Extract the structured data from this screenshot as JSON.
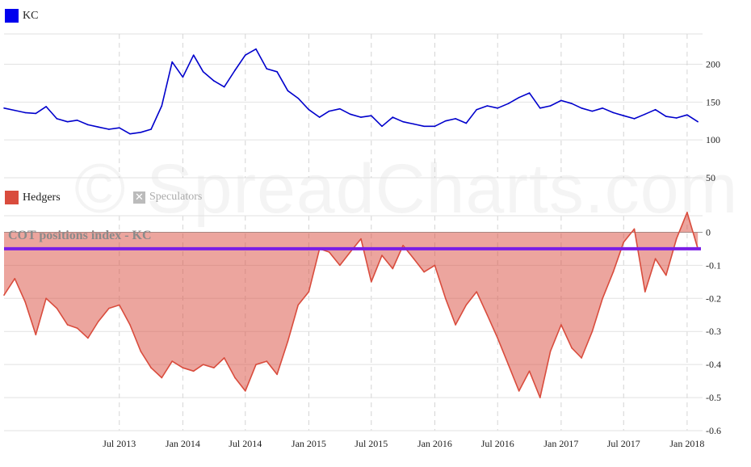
{
  "legend_top": {
    "label": "KC",
    "color": "#0000ee"
  },
  "legend_bottom": [
    {
      "label": "Hedgers",
      "color": "#d94c3d",
      "active": true
    },
    {
      "label": "Speculators",
      "color": "#bbbbbb",
      "active": false
    }
  ],
  "watermark": "© SpreadCharts.com",
  "chart_data": [
    {
      "type": "line",
      "title": "",
      "series": [
        {
          "name": "KC",
          "color": "#0000cc",
          "x": [
            "2012-08-01",
            "2012-09-01",
            "2012-10-01",
            "2012-11-01",
            "2012-12-01",
            "2013-01-01",
            "2013-02-01",
            "2013-03-01",
            "2013-04-01",
            "2013-05-01",
            "2013-06-01",
            "2013-07-01",
            "2013-08-01",
            "2013-09-01",
            "2013-10-01",
            "2013-11-01",
            "2013-12-01",
            "2014-01-01",
            "2014-02-01",
            "2014-03-01",
            "2014-04-01",
            "2014-05-01",
            "2014-06-01",
            "2014-07-01",
            "2014-08-01",
            "2014-09-01",
            "2014-10-01",
            "2014-11-01",
            "2014-12-01",
            "2015-01-01",
            "2015-02-01",
            "2015-03-01",
            "2015-04-01",
            "2015-05-01",
            "2015-06-01",
            "2015-07-01",
            "2015-08-01",
            "2015-09-01",
            "2015-10-01",
            "2015-11-01",
            "2015-12-01",
            "2016-01-01",
            "2016-02-01",
            "2016-03-01",
            "2016-04-01",
            "2016-05-01",
            "2016-06-01",
            "2016-07-01",
            "2016-08-01",
            "2016-09-01",
            "2016-10-01",
            "2016-11-01",
            "2016-12-01",
            "2017-01-01",
            "2017-02-01",
            "2017-03-01",
            "2017-04-01",
            "2017-05-01",
            "2017-06-01",
            "2017-07-01",
            "2017-08-01",
            "2017-09-01",
            "2017-10-01",
            "2017-11-01",
            "2017-12-01",
            "2018-01-01",
            "2018-02-01"
          ],
          "values": [
            142,
            139,
            136,
            135,
            144,
            128,
            124,
            126,
            120,
            117,
            114,
            116,
            108,
            110,
            114,
            145,
            203,
            183,
            212,
            190,
            178,
            170,
            192,
            212,
            220,
            194,
            190,
            165,
            155,
            140,
            130,
            138,
            141,
            134,
            130,
            132,
            118,
            130,
            124,
            121,
            118,
            118,
            125,
            128,
            122,
            140,
            145,
            142,
            148,
            156,
            162,
            142,
            145,
            152,
            148,
            142,
            138,
            142,
            136,
            132,
            128,
            134,
            140,
            131,
            129,
            133,
            124
          ]
        }
      ],
      "ylim": [
        50,
        240
      ],
      "yticks": [
        50,
        100,
        150,
        200
      ],
      "grid": true,
      "legend": "top-left"
    },
    {
      "type": "area",
      "title": "COT positions index - KC",
      "series": [
        {
          "name": "Hedgers",
          "color": "#d94c3d",
          "x": [
            "2012-08-01",
            "2012-09-01",
            "2012-10-01",
            "2012-11-01",
            "2012-12-01",
            "2013-01-01",
            "2013-02-01",
            "2013-03-01",
            "2013-04-01",
            "2013-05-01",
            "2013-06-01",
            "2013-07-01",
            "2013-08-01",
            "2013-09-01",
            "2013-10-01",
            "2013-11-01",
            "2013-12-01",
            "2014-01-01",
            "2014-02-01",
            "2014-03-01",
            "2014-04-01",
            "2014-05-01",
            "2014-06-01",
            "2014-07-01",
            "2014-08-01",
            "2014-09-01",
            "2014-10-01",
            "2014-11-01",
            "2014-12-01",
            "2015-01-01",
            "2015-02-01",
            "2015-03-01",
            "2015-04-01",
            "2015-05-01",
            "2015-06-01",
            "2015-07-01",
            "2015-08-01",
            "2015-09-01",
            "2015-10-01",
            "2015-11-01",
            "2015-12-01",
            "2016-01-01",
            "2016-02-01",
            "2016-03-01",
            "2016-04-01",
            "2016-05-01",
            "2016-06-01",
            "2016-07-01",
            "2016-08-01",
            "2016-09-01",
            "2016-10-01",
            "2016-11-01",
            "2016-12-01",
            "2017-01-01",
            "2017-02-01",
            "2017-03-01",
            "2017-04-01",
            "2017-05-01",
            "2017-06-01",
            "2017-07-01",
            "2017-08-01",
            "2017-09-01",
            "2017-10-01",
            "2017-11-01",
            "2017-12-01",
            "2018-01-01",
            "2018-02-01"
          ],
          "values": [
            -0.19,
            -0.14,
            -0.21,
            -0.31,
            -0.2,
            -0.23,
            -0.28,
            -0.29,
            -0.32,
            -0.27,
            -0.23,
            -0.22,
            -0.28,
            -0.36,
            -0.41,
            -0.44,
            -0.39,
            -0.41,
            -0.42,
            -0.4,
            -0.41,
            -0.38,
            -0.44,
            -0.48,
            -0.4,
            -0.39,
            -0.43,
            -0.33,
            -0.22,
            -0.18,
            -0.05,
            -0.06,
            -0.1,
            -0.06,
            -0.02,
            -0.15,
            -0.07,
            -0.11,
            -0.04,
            -0.08,
            -0.12,
            -0.1,
            -0.2,
            -0.28,
            -0.22,
            -0.18,
            -0.25,
            -0.32,
            -0.4,
            -0.48,
            -0.42,
            -0.5,
            -0.36,
            -0.28,
            -0.35,
            -0.38,
            -0.3,
            -0.2,
            -0.12,
            -0.03,
            0.01,
            -0.18,
            -0.08,
            -0.13,
            -0.02,
            0.06,
            -0.05
          ]
        }
      ],
      "reference_line": {
        "value": -0.05,
        "color": "#7a1ee6"
      },
      "ylim": [
        -0.6,
        0.05
      ],
      "yticks": [
        -0.6,
        -0.5,
        -0.4,
        -0.3,
        -0.2,
        -0.1,
        0
      ],
      "ytick_labels": [
        "-0.6",
        "-0.5",
        "-0.4",
        "-0.3",
        "-0.2",
        "-0.1",
        "0"
      ],
      "xtick_labels": [
        "Jul 2013",
        "Jan 2014",
        "Jul 2014",
        "Jan 2015",
        "Jul 2015",
        "Jan 2016",
        "Jul 2016",
        "Jan 2017",
        "Jul 2017",
        "Jan 2018"
      ],
      "xtick_dates": [
        "2013-07-01",
        "2014-01-01",
        "2014-07-01",
        "2015-01-01",
        "2015-07-01",
        "2016-01-01",
        "2016-07-01",
        "2017-01-01",
        "2017-07-01",
        "2018-01-01"
      ],
      "grid": true,
      "legend": "top-left"
    }
  ]
}
